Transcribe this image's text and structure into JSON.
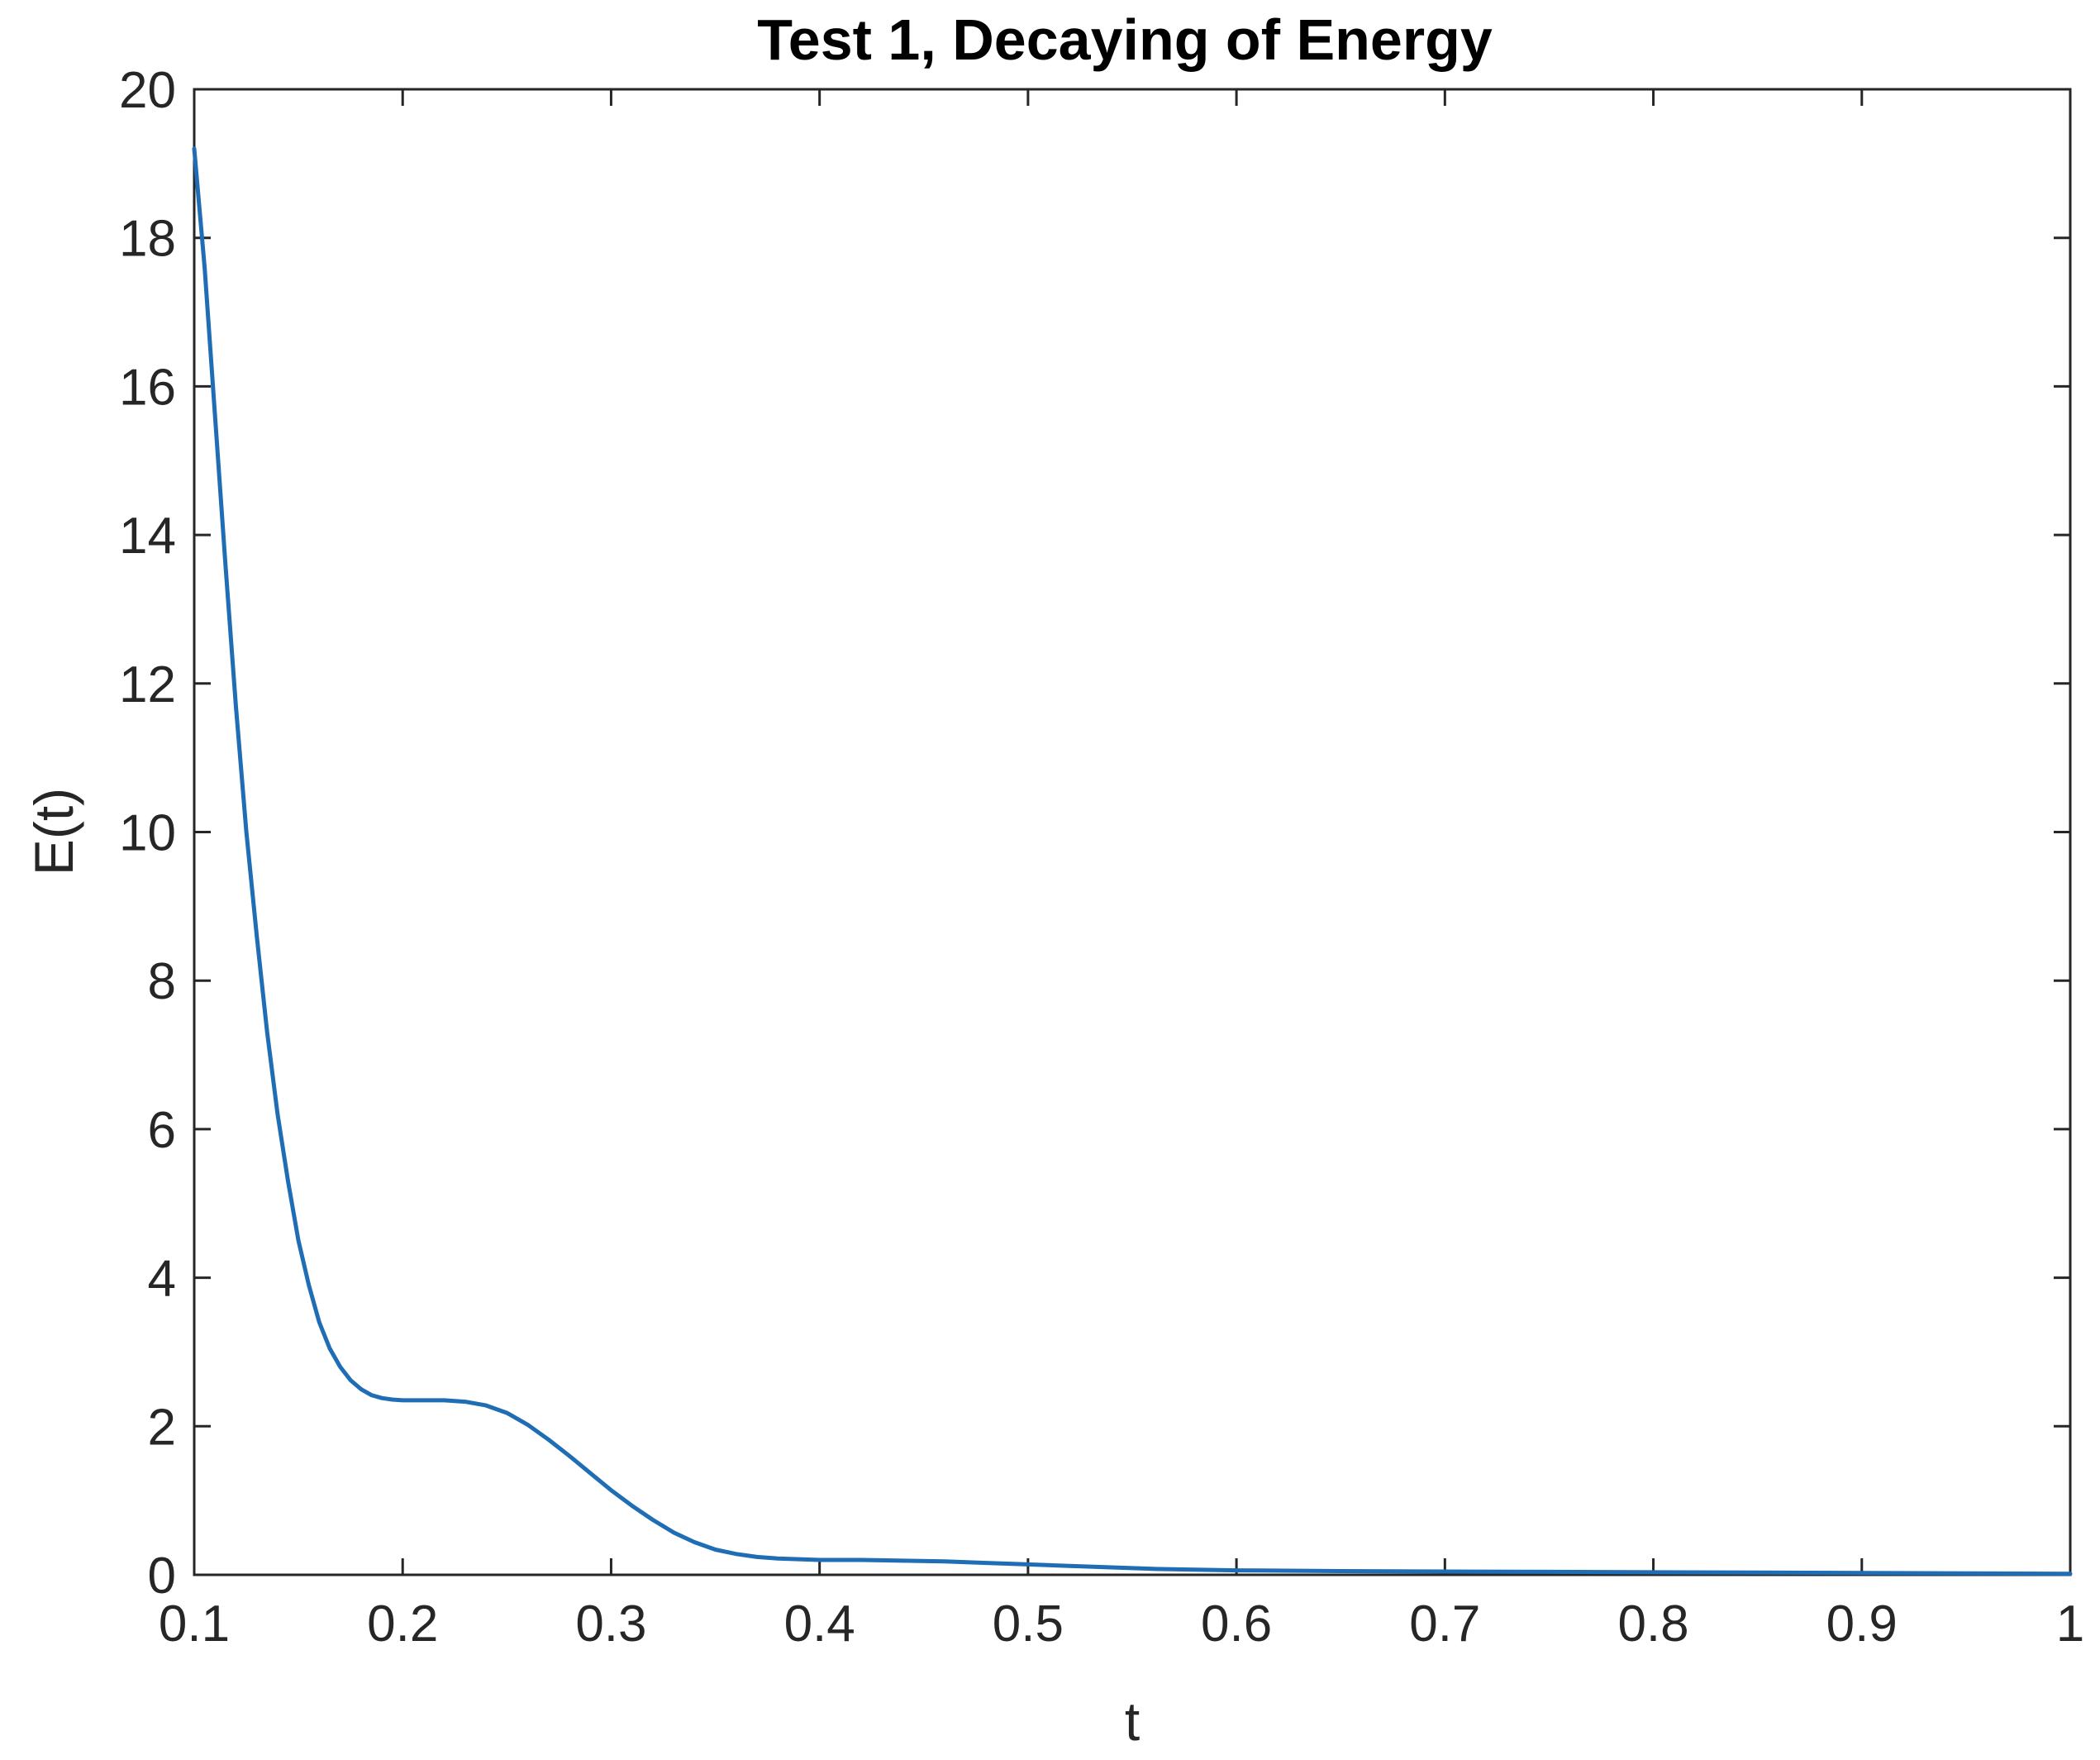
{
  "chart_data": {
    "type": "line",
    "title": "Test 1, Decaying of Energy",
    "xlabel": "t",
    "ylabel": "E(t)",
    "xlim": [
      0.1,
      1
    ],
    "ylim": [
      0,
      20
    ],
    "x_ticks": [
      "0.1",
      "0.2",
      "0.3",
      "0.4",
      "0.5",
      "0.6",
      "0.7",
      "0.8",
      "0.9",
      "1"
    ],
    "y_ticks": [
      "0",
      "2",
      "4",
      "6",
      "8",
      "10",
      "12",
      "14",
      "16",
      "18",
      "20"
    ],
    "x_tick_values": [
      0.1,
      0.2,
      0.3,
      0.4,
      0.5,
      0.6,
      0.7,
      0.8,
      0.9,
      1.0
    ],
    "y_tick_values": [
      0,
      2,
      4,
      6,
      8,
      10,
      12,
      14,
      16,
      18,
      20
    ],
    "grid": false,
    "line_color": "#1f6db4",
    "series": [
      {
        "x": [
          0.1,
          0.105,
          0.11,
          0.115,
          0.12,
          0.125,
          0.13,
          0.135,
          0.14,
          0.145,
          0.15,
          0.155,
          0.16,
          0.165,
          0.17,
          0.175,
          0.18,
          0.185,
          0.19,
          0.195,
          0.2,
          0.21,
          0.22,
          0.23,
          0.24,
          0.25,
          0.26,
          0.27,
          0.28,
          0.29,
          0.3,
          0.31,
          0.32,
          0.33,
          0.34,
          0.35,
          0.36,
          0.37,
          0.38,
          0.39,
          0.4,
          0.42,
          0.44,
          0.46,
          0.48,
          0.5,
          0.52,
          0.54,
          0.56,
          0.58,
          0.6,
          0.65,
          0.7,
          0.75,
          0.8,
          0.85,
          0.9,
          0.95,
          1.0
        ],
        "y": [
          19.2,
          17.6,
          15.6,
          13.6,
          11.7,
          10.0,
          8.6,
          7.3,
          6.2,
          5.3,
          4.5,
          3.9,
          3.4,
          3.05,
          2.8,
          2.62,
          2.5,
          2.42,
          2.38,
          2.36,
          2.35,
          2.35,
          2.35,
          2.33,
          2.28,
          2.18,
          2.02,
          1.82,
          1.6,
          1.37,
          1.14,
          0.93,
          0.74,
          0.57,
          0.44,
          0.34,
          0.28,
          0.24,
          0.22,
          0.21,
          0.2,
          0.2,
          0.19,
          0.18,
          0.16,
          0.14,
          0.12,
          0.1,
          0.08,
          0.07,
          0.06,
          0.05,
          0.045,
          0.04,
          0.035,
          0.03,
          0.025,
          0.02,
          0.015
        ]
      }
    ]
  }
}
